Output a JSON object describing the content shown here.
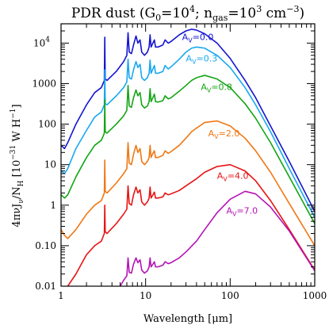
{
  "chart_data": {
    "type": "line",
    "title_parts": {
      "a": "PDR dust (G",
      "b": "0",
      "c": "=10",
      "d": "4",
      "e": "; n",
      "f": "gas",
      "g": "=10",
      "h": "3",
      "i": " cm",
      "j": "−3",
      "k": ")"
    },
    "xlabel_parts": {
      "a": "Wavelength [",
      "b": "μ",
      "c": "m]"
    },
    "ylabel_parts": {
      "a": "4πνJ",
      "b": "ν",
      "c": "/N",
      "d": "H",
      "e": " [10",
      "f": "−31",
      "g": " W H",
      "h": "−1",
      "i": "]"
    },
    "x_scale": "log",
    "y_scale": "log",
    "xlim": [
      1,
      1000
    ],
    "ylim": [
      0.01,
      30000
    ],
    "x_ticks": [
      {
        "value": 1,
        "label": "1"
      },
      {
        "value": 10,
        "label": "10"
      },
      {
        "value": 100,
        "label": "100"
      },
      {
        "value": 1000,
        "label": "1000"
      }
    ],
    "y_ticks": [
      {
        "value": 0.01,
        "label": "0.01",
        "sup": ""
      },
      {
        "value": 0.1,
        "label": "0.10",
        "sup": ""
      },
      {
        "value": 1,
        "label": "1",
        "sup": ""
      },
      {
        "value": 10,
        "label": "10",
        "sup": ""
      },
      {
        "value": 100,
        "label": "100",
        "sup": ""
      },
      {
        "value": 1000,
        "label": "1000",
        "sup": ""
      },
      {
        "value": 10000,
        "label": "10",
        "sup": "4"
      }
    ],
    "grid": false,
    "series": [
      {
        "label_parts": {
          "a": "A",
          "b": "V",
          "c": "=0.0"
        },
        "label_at": [
          27,
          12000
        ],
        "color": "#1414d2",
        "x": [
          1.0,
          1.1,
          1.2,
          1.5,
          2.0,
          2.5,
          3.0,
          3.25,
          3.29,
          3.33,
          3.5,
          4.5,
          5.5,
          6.0,
          6.2,
          6.4,
          6.8,
          7.2,
          7.7,
          8.1,
          8.6,
          9.0,
          9.7,
          10.5,
          11.0,
          11.3,
          11.6,
          12.2,
          12.7,
          13.1,
          14.0,
          16.0,
          17.0,
          18.5,
          20,
          25,
          30,
          35,
          40,
          50,
          70,
          100,
          150,
          200,
          300,
          500,
          1000
        ],
        "y": [
          30.0,
          25.0,
          35.0,
          100.0,
          300.0,
          600.0,
          800.0,
          1200.0,
          14000.0,
          1300.0,
          1200.0,
          2000.0,
          3500.0,
          5000.0,
          18000.0,
          6000.0,
          5500.0,
          9000.0,
          15000.0,
          10000.0,
          12000.0,
          6000.0,
          5000.0,
          6000.0,
          8000.0,
          16000.0,
          8000.0,
          10000.0,
          12000.0,
          8000.0,
          8000.0,
          9000.0,
          12000.0,
          10000.0,
          11000.0,
          16000.0,
          20000.0,
          22000.0,
          21000.0,
          17000.0,
          10000.0,
          4200.0,
          1200.0,
          450.0,
          90.0,
          12.0,
          0.7
        ]
      },
      {
        "label_parts": {
          "a": "A",
          "b": "V",
          "c": "=0.3"
        },
        "label_at": [
          30,
          3500
        ],
        "color": "#18a8f0",
        "x": [
          1.0,
          1.1,
          1.2,
          1.5,
          2.0,
          2.5,
          3.0,
          3.25,
          3.29,
          3.33,
          3.5,
          4.5,
          5.5,
          6.0,
          6.2,
          6.4,
          6.8,
          7.2,
          7.7,
          8.1,
          8.6,
          9.0,
          9.7,
          10.5,
          11.0,
          11.3,
          11.6,
          12.2,
          12.7,
          13.1,
          14.0,
          16.0,
          17.0,
          18.5,
          20,
          25,
          30,
          35,
          40,
          50,
          70,
          100,
          150,
          200,
          300,
          500,
          1000
        ],
        "y": [
          7,
          6,
          8,
          25.0,
          70.0,
          150.0,
          200.0,
          300.0,
          2200.0,
          320.0,
          300.0,
          500.0,
          800.0,
          1100.0,
          4000.0,
          1400.0,
          1300.0,
          2200.0,
          3500.0,
          2500.0,
          3000.0,
          1400.0,
          1200.0,
          1400.0,
          1800.0,
          3800.0,
          1800.0,
          2300.0,
          2800.0,
          1800.0,
          1800.0,
          2000.0,
          2800.0,
          2300.0,
          2600.0,
          4000.0,
          6000.0,
          7500.0,
          8000.0,
          7500.0,
          5000.0,
          2500.0,
          800.0,
          300.0,
          65.0,
          8,
          0.5
        ]
      },
      {
        "label_parts": {
          "a": "A",
          "b": "V",
          "c": "=0.8"
        },
        "label_at": [
          45,
          700
        ],
        "color": "#14a514",
        "x": [
          1.0,
          1.1,
          1.2,
          1.5,
          2.0,
          2.5,
          3.0,
          3.25,
          3.29,
          3.33,
          3.5,
          4.5,
          5.5,
          6.0,
          6.2,
          6.4,
          6.8,
          7.2,
          7.7,
          8.1,
          8.6,
          9.0,
          9.7,
          10.5,
          11.0,
          11.3,
          11.6,
          12.2,
          12.7,
          13.1,
          14.0,
          16.0,
          17.0,
          18.5,
          20,
          25,
          30,
          35,
          40,
          50,
          70,
          100,
          150,
          200,
          300,
          500,
          1000
        ],
        "y": [
          1.8,
          1.5,
          1.8,
          5,
          15.0,
          30.0,
          40.0,
          60.0,
          400.0,
          65.0,
          60.0,
          100.0,
          160.0,
          220.0,
          900.0,
          280.0,
          260.0,
          450.0,
          700.0,
          500.0,
          600.0,
          300.0,
          250.0,
          280.0,
          360.0,
          750.0,
          360.0,
          450.0,
          550.0,
          360.0,
          350.0,
          380.0,
          500.0,
          420.0,
          450.0,
          650.0,
          900.0,
          1200.0,
          1400.0,
          1600.0,
          1300.0,
          800.0,
          320.0,
          140.0,
          35.0,
          5,
          0.35
        ]
      },
      {
        "label_parts": {
          "a": "A",
          "b": "V",
          "c": "=2.0"
        },
        "label_at": [
          55,
          50
        ],
        "color": "#f07814",
        "x": [
          1.0,
          1.1,
          1.2,
          1.5,
          2.0,
          2.5,
          3.0,
          3.25,
          3.29,
          3.33,
          3.5,
          4.5,
          5.5,
          6.0,
          6.2,
          6.4,
          6.8,
          7.2,
          7.7,
          8.1,
          8.6,
          9.0,
          9.7,
          10.5,
          11.0,
          11.3,
          11.6,
          12.2,
          12.7,
          13.1,
          14.0,
          16.0,
          17.0,
          18.5,
          20,
          25,
          30,
          35,
          40,
          50,
          70,
          100,
          150,
          200,
          300,
          500,
          1000
        ],
        "y": [
          0.25,
          0.18,
          0.15,
          0.25,
          0.6,
          1.0,
          1.3,
          2.0,
          13.0,
          2.2,
          2.0,
          3.5,
          6,
          8,
          35.0,
          11.0,
          10.0,
          18.0,
          30.0,
          20.0,
          25.0,
          12.0,
          10.0,
          12.0,
          15.0,
          30.0,
          15.0,
          19.0,
          22.0,
          15.0,
          15.0,
          17.0,
          22.0,
          19.0,
          21.0,
          30.0,
          45.0,
          65.0,
          80.0,
          110.0,
          120.0,
          90.0,
          45.0,
          22.0,
          6.5,
          1.1,
          0.1
        ]
      },
      {
        "label_parts": {
          "a": "A",
          "b": "V",
          "c": "=4.0"
        },
        "label_at": [
          70,
          4.5
        ],
        "color": "#e81414",
        "x": [
          1.0,
          1.2,
          1.5,
          2.0,
          2.5,
          3.0,
          3.25,
          3.29,
          3.33,
          3.5,
          4.5,
          5.5,
          6.0,
          6.2,
          6.4,
          6.8,
          7.2,
          7.7,
          8.1,
          8.6,
          9.0,
          9.7,
          10.5,
          11.0,
          11.3,
          11.6,
          12.2,
          12.7,
          13.1,
          14.0,
          16.0,
          17.0,
          18.5,
          20,
          25,
          30,
          40,
          50,
          70,
          100,
          150,
          200,
          300,
          500,
          1000
        ],
        "y": [
          0.009,
          0.01,
          0.02,
          0.06,
          0.1,
          0.13,
          0.2,
          1.0,
          0.22,
          0.2,
          0.35,
          0.6,
          0.8,
          3.0,
          1.1,
          1.0,
          1.8,
          2.8,
          2.0,
          2.4,
          1.2,
          1.0,
          1.2,
          1.5,
          2.8,
          1.5,
          1.8,
          2.1,
          1.5,
          1.5,
          1.6,
          2.0,
          1.8,
          1.9,
          2.3,
          3.0,
          4.5,
          6.5,
          9.0,
          10.0,
          7.0,
          4.0,
          1.3,
          0.25,
          0.025
        ]
      },
      {
        "label_parts": {
          "a": "A",
          "b": "V",
          "c": "=7.0"
        },
        "label_at": [
          90,
          0.62
        ],
        "color": "#b414b4",
        "x": [
          5.0,
          5.5,
          6.0,
          6.2,
          6.4,
          6.8,
          7.2,
          7.7,
          8.1,
          8.6,
          9.0,
          9.7,
          10.5,
          11.0,
          11.3,
          11.6,
          12.2,
          12.7,
          13.1,
          14.0,
          16.0,
          17.0,
          18.5,
          20,
          25,
          30,
          40,
          50,
          70,
          100,
          150,
          200,
          300,
          500,
          1000
        ],
        "y": [
          0.01,
          0.014,
          0.018,
          0.05,
          0.022,
          0.021,
          0.035,
          0.05,
          0.038,
          0.045,
          0.025,
          0.021,
          0.024,
          0.03,
          0.05,
          0.03,
          0.035,
          0.04,
          0.03,
          0.03,
          0.033,
          0.04,
          0.036,
          0.038,
          0.05,
          0.07,
          0.13,
          0.25,
          0.65,
          1.4,
          2.2,
          1.9,
          0.9,
          0.23,
          0.024
        ]
      }
    ]
  }
}
